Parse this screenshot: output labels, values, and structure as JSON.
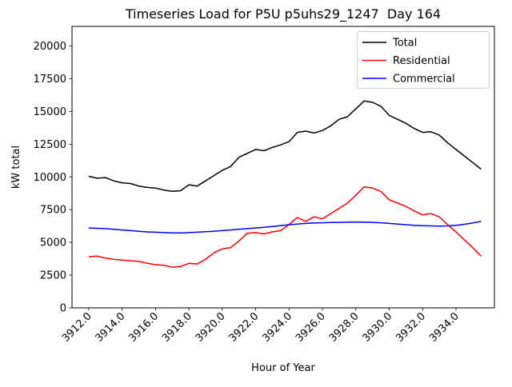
{
  "chart_data": {
    "type": "line",
    "title": "Timeseries Load for P5U p5uhs29_1247  Day 164",
    "xlabel": "Hour of Year",
    "ylabel": "kW total",
    "grid": false,
    "legend_position": "upper right",
    "xlim": [
      3911.0,
      3936.3
    ],
    "ylim": [
      0,
      21500
    ],
    "xticks": [
      3912,
      3914,
      3916,
      3918,
      3920,
      3922,
      3924,
      3926,
      3928,
      3930,
      3932,
      3934
    ],
    "xtick_labels": [
      "3912.0",
      "3914.0",
      "3916.0",
      "3918.0",
      "3920.0",
      "3922.0",
      "3924.0",
      "3926.0",
      "3928.0",
      "3930.0",
      "3932.0",
      "3934.0"
    ],
    "yticks": [
      0,
      2500,
      5000,
      7500,
      10000,
      12500,
      15000,
      17500,
      20000
    ],
    "x": [
      3912.0,
      3912.5,
      3913.0,
      3913.5,
      3914.0,
      3914.5,
      3915.0,
      3915.5,
      3916.0,
      3916.5,
      3917.0,
      3917.5,
      3918.0,
      3918.5,
      3919.0,
      3919.5,
      3920.0,
      3920.5,
      3921.0,
      3921.5,
      3922.0,
      3922.5,
      3923.0,
      3923.5,
      3924.0,
      3924.5,
      3925.0,
      3925.5,
      3926.0,
      3926.5,
      3927.0,
      3927.5,
      3928.0,
      3928.5,
      3929.0,
      3929.5,
      3930.0,
      3930.5,
      3931.0,
      3931.5,
      3932.0,
      3932.5,
      3933.0,
      3933.5,
      3934.0,
      3934.5,
      3935.0,
      3935.5
    ],
    "series": [
      {
        "name": "Total",
        "color": "#000000",
        "values": [
          10050,
          9900,
          9950,
          9700,
          9550,
          9500,
          9300,
          9200,
          9150,
          9000,
          8900,
          8950,
          9400,
          9300,
          9700,
          10100,
          10500,
          10800,
          11500,
          11800,
          12100,
          12000,
          12250,
          12450,
          12700,
          13400,
          13500,
          13350,
          13550,
          13900,
          14400,
          14600,
          15200,
          15800,
          15700,
          15400,
          14700,
          14400,
          14100,
          13700,
          13400,
          13450,
          13200,
          12600,
          12100,
          11600,
          11100,
          10600
        ]
      },
      {
        "name": "Residential",
        "color": "#ff0000",
        "values": [
          3900,
          3950,
          3800,
          3700,
          3650,
          3600,
          3550,
          3400,
          3300,
          3250,
          3100,
          3150,
          3400,
          3350,
          3700,
          4200,
          4500,
          4600,
          5100,
          5700,
          5750,
          5650,
          5800,
          5900,
          6350,
          6900,
          6600,
          6950,
          6800,
          7200,
          7600,
          8000,
          8600,
          9250,
          9150,
          8900,
          8250,
          8000,
          7750,
          7400,
          7100,
          7200,
          6950,
          6350,
          5800,
          5200,
          4600,
          3950
        ]
      },
      {
        "name": "Commercial",
        "color": "#0000ff",
        "values": [
          6100,
          6080,
          6050,
          6000,
          5950,
          5900,
          5850,
          5800,
          5780,
          5750,
          5730,
          5720,
          5750,
          5780,
          5820,
          5850,
          5900,
          5950,
          6000,
          6050,
          6100,
          6150,
          6220,
          6280,
          6350,
          6400,
          6450,
          6480,
          6500,
          6520,
          6530,
          6540,
          6550,
          6540,
          6530,
          6500,
          6450,
          6400,
          6350,
          6300,
          6280,
          6260,
          6250,
          6260,
          6300,
          6380,
          6480,
          6600
        ]
      }
    ]
  }
}
